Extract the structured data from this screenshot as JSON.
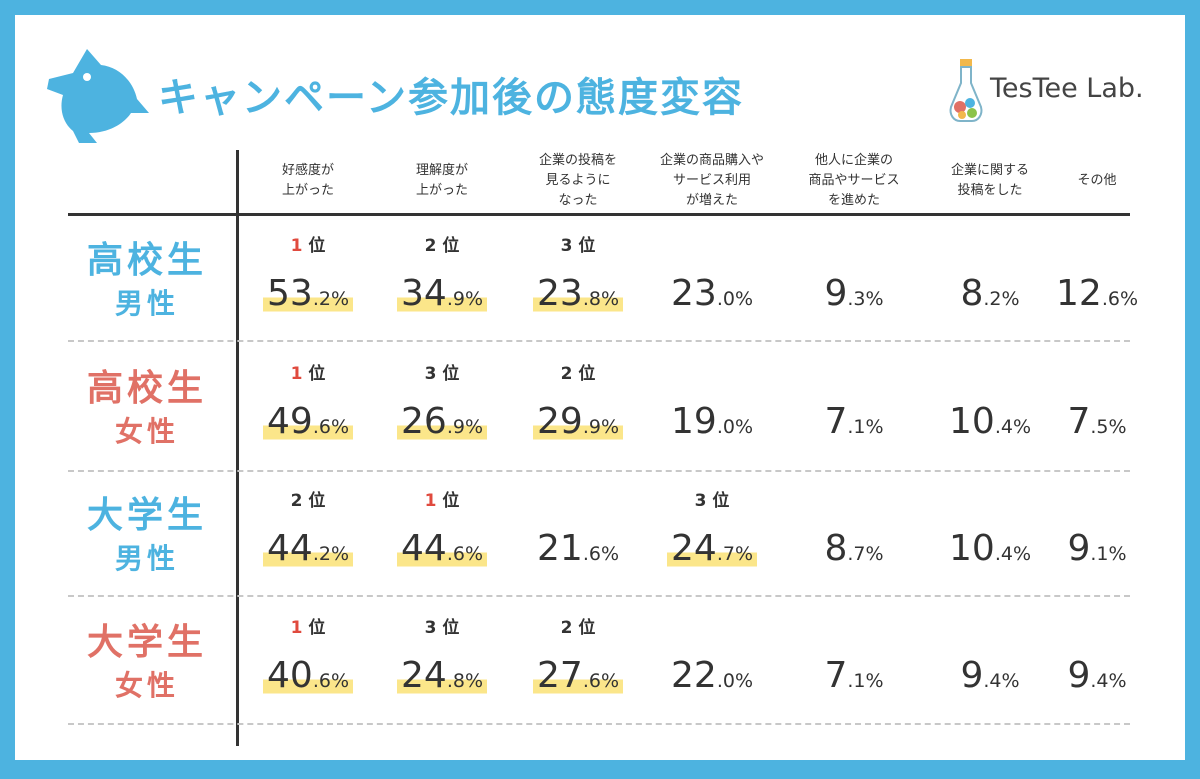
{
  "title": "キャンペーン参加後の態度変容",
  "logo_text": "TesTee Lab.",
  "colors": {
    "blue": "#4db3e0",
    "red": "#e07166",
    "highlight": "#fbe68a",
    "rank_first": "#e04a3e"
  },
  "icons": {
    "brand": "bird-icon",
    "logo": "flask-icon"
  },
  "chart_data": {
    "type": "table",
    "title": "キャンペーン参加後の態度変容",
    "columns": [
      "好感度が\n上がった",
      "理解度が\n上がった",
      "企業の投稿を\n見るように\nなった",
      "企業の商品購入や\nサービス利用\nが増えた",
      "他人に企業の\n商品やサービス\nを進めた",
      "企業に関する\n投稿をした",
      "その他"
    ],
    "rows": [
      {
        "label": [
          "高校生",
          "男性"
        ],
        "color": "#4db3e0",
        "values": [
          "53",
          "34",
          "23",
          "23",
          "9",
          "8",
          "12"
        ],
        "decimals": [
          ".2%",
          ".9%",
          ".8%",
          ".0%",
          ".3%",
          ".2%",
          ".6%"
        ],
        "numeric": [
          53.2,
          34.9,
          23.8,
          23.0,
          9.3,
          8.2,
          12.6
        ],
        "ranks": [
          "1",
          "2",
          "3",
          "",
          "",
          "",
          ""
        ]
      },
      {
        "label": [
          "高校生",
          "女性"
        ],
        "color": "#e07166",
        "values": [
          "49",
          "26",
          "29",
          "19",
          "7",
          "10",
          "7"
        ],
        "decimals": [
          ".6%",
          ".9%",
          ".9%",
          ".0%",
          ".1%",
          ".4%",
          ".5%"
        ],
        "numeric": [
          49.6,
          26.9,
          29.9,
          19.0,
          7.1,
          10.4,
          7.5
        ],
        "ranks": [
          "1",
          "3",
          "2",
          "",
          "",
          "",
          ""
        ]
      },
      {
        "label": [
          "大学生",
          "男性"
        ],
        "color": "#4db3e0",
        "values": [
          "44",
          "44",
          "21",
          "24",
          "8",
          "10",
          "9"
        ],
        "decimals": [
          ".2%",
          ".6%",
          ".6%",
          ".7%",
          ".7%",
          ".4%",
          ".1%"
        ],
        "numeric": [
          44.2,
          44.6,
          21.6,
          24.7,
          8.7,
          10.4,
          9.1
        ],
        "ranks": [
          "2",
          "1",
          "",
          "3",
          "",
          "",
          ""
        ]
      },
      {
        "label": [
          "大学生",
          "女性"
        ],
        "color": "#e07166",
        "values": [
          "40",
          "24",
          "27",
          "22",
          "7",
          "9",
          "9"
        ],
        "decimals": [
          ".6%",
          ".8%",
          ".6%",
          ".0%",
          ".1%",
          ".4%",
          ".4%"
        ],
        "numeric": [
          40.6,
          24.8,
          27.6,
          22.0,
          7.1,
          9.4,
          9.4
        ],
        "ranks": [
          "1",
          "3",
          "2",
          "",
          "",
          "",
          ""
        ]
      }
    ],
    "rank_suffix": "位"
  }
}
